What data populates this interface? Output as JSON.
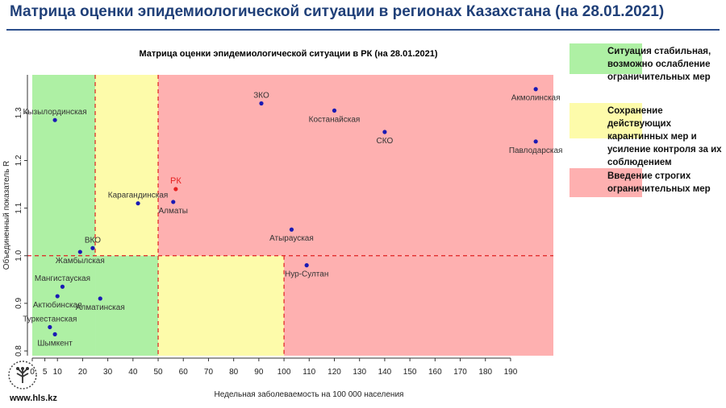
{
  "page": {
    "title": "Матрица оценки эпидемиологической ситуации в регионах Казахстана (на 28.01.2021)",
    "website": "www.hls.kz"
  },
  "colors": {
    "title": "#1f3f78",
    "green_zone": "#aef0a4",
    "yellow_zone": "#fdfbaa",
    "red_zone": "#feb0b0",
    "point": "#1a1ab4",
    "highlight": "#e62020",
    "dashed_line": "#e02020"
  },
  "legend": [
    {
      "color": "#aef0a4",
      "text": [
        "Ситуация стабильная,",
        "возможно ослабление",
        "ограничительных мер"
      ]
    },
    {
      "color": "#fdfbaa",
      "text": [
        "Сохранение действующих",
        "карантинных мер и",
        "усиление контроля за их",
        "соблюдением"
      ]
    },
    {
      "color": "#feb0b0",
      "text": [
        "Введение строгих",
        "ограничительных мер"
      ]
    }
  ],
  "chart_data": {
    "type": "scatter",
    "title": "Матрица оценки эпидемиологической ситуации в РК (на 28.01.2021)",
    "xlabel": "Недельная заболеваемость на 100 000 населения",
    "ylabel": "Объединенный показатель R",
    "xlim": [
      0,
      207
    ],
    "ylim": [
      0.79,
      1.38
    ],
    "x_ticks": [
      0,
      5,
      10,
      20,
      30,
      40,
      50,
      60,
      70,
      80,
      90,
      100,
      110,
      120,
      130,
      140,
      150,
      160,
      170,
      180,
      190
    ],
    "y_ticks": [
      0.8,
      0.9,
      1.0,
      1.1,
      1.2,
      1.3
    ],
    "thresholds": {
      "x": [
        25,
        50,
        100
      ],
      "y": 1.0
    },
    "zones": [
      {
        "x": [
          0,
          25
        ],
        "y": [
          0.79,
          1.38
        ],
        "zone": "green"
      },
      {
        "x": [
          25,
          50
        ],
        "y": [
          1.0,
          1.38
        ],
        "zone": "yellow"
      },
      {
        "x": [
          25,
          50
        ],
        "y": [
          0.79,
          1.0
        ],
        "zone": "green"
      },
      {
        "x": [
          50,
          100
        ],
        "y": [
          0.79,
          1.0
        ],
        "zone": "yellow"
      },
      {
        "x": [
          50,
          207
        ],
        "y": [
          1.0,
          1.38
        ],
        "zone": "red"
      },
      {
        "x": [
          100,
          207
        ],
        "y": [
          0.79,
          1.0
        ],
        "zone": "red"
      }
    ],
    "points": [
      {
        "label": "Кызылординская",
        "x": 9,
        "y": 1.285,
        "label_pos": "above",
        "highlight": false
      },
      {
        "label": "ЗКО",
        "x": 91,
        "y": 1.32,
        "label_pos": "above",
        "highlight": false
      },
      {
        "label": "Акмолинская",
        "x": 200,
        "y": 1.35,
        "label_pos": "below",
        "highlight": false
      },
      {
        "label": "Костанайская",
        "x": 120,
        "y": 1.305,
        "label_pos": "below",
        "highlight": false
      },
      {
        "label": "СКО",
        "x": 140,
        "y": 1.26,
        "label_pos": "below",
        "highlight": false
      },
      {
        "label": "Павлодарская",
        "x": 200,
        "y": 1.24,
        "label_pos": "below",
        "highlight": false
      },
      {
        "label": "Карагандинская",
        "x": 42,
        "y": 1.11,
        "label_pos": "above",
        "highlight": false
      },
      {
        "label": "РК",
        "x": 57,
        "y": 1.14,
        "label_pos": "above",
        "highlight": true
      },
      {
        "label": "Алматы",
        "x": 56,
        "y": 1.113,
        "label_pos": "below",
        "highlight": false
      },
      {
        "label": "Атырауская",
        "x": 103,
        "y": 1.055,
        "label_pos": "below",
        "highlight": false
      },
      {
        "label": "ВКО",
        "x": 24,
        "y": 1.016,
        "label_pos": "above",
        "highlight": false
      },
      {
        "label": "Жамбылская",
        "x": 19,
        "y": 1.008,
        "label_pos": "below",
        "highlight": false
      },
      {
        "label": "Нур-Султан",
        "x": 109,
        "y": 0.98,
        "label_pos": "below",
        "highlight": false
      },
      {
        "label": "Мангистауская",
        "x": 12,
        "y": 0.935,
        "label_pos": "above",
        "highlight": false
      },
      {
        "label": "Актюбинская",
        "x": 10,
        "y": 0.915,
        "label_pos": "below",
        "highlight": false
      },
      {
        "label": "Алматинская",
        "x": 27,
        "y": 0.91,
        "label_pos": "below",
        "highlight": false
      },
      {
        "label": "Туркестанская",
        "x": 7,
        "y": 0.85,
        "label_pos": "above",
        "highlight": false
      },
      {
        "label": "Шымкент",
        "x": 9,
        "y": 0.835,
        "label_pos": "below",
        "highlight": false
      }
    ]
  }
}
